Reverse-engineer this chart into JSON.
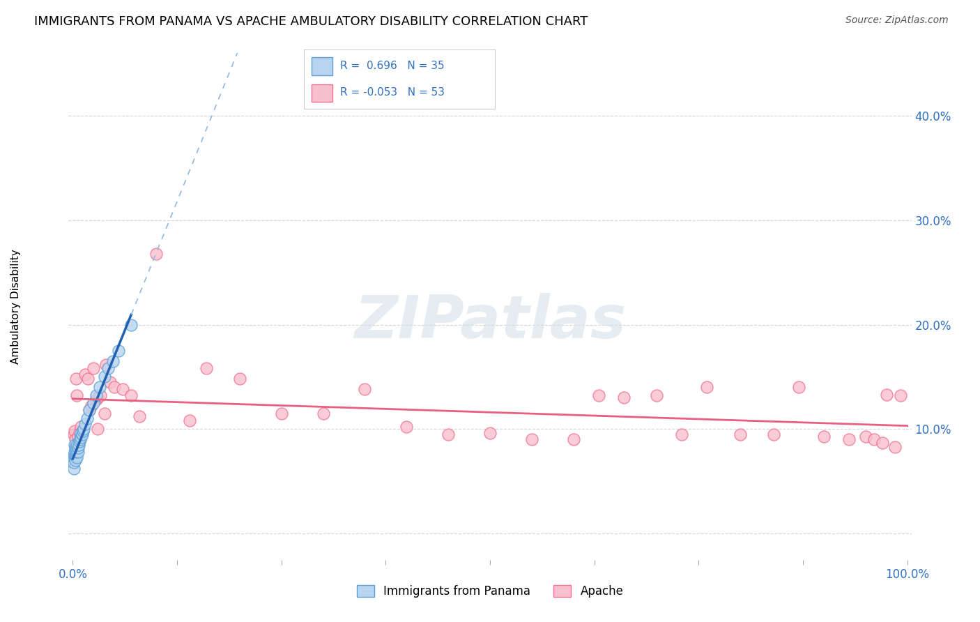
{
  "title": "IMMIGRANTS FROM PANAMA VS APACHE AMBULATORY DISABILITY CORRELATION CHART",
  "source": "Source: ZipAtlas.com",
  "ylabel": "Ambulatory Disability",
  "xlim": [
    -0.005,
    1.005
  ],
  "ylim": [
    -0.025,
    0.46
  ],
  "xticks": [
    0.0,
    0.125,
    0.25,
    0.375,
    0.5,
    0.625,
    0.75,
    0.875,
    1.0
  ],
  "xtick_labels": [
    "0.0%",
    "",
    "",
    "",
    "",
    "",
    "",
    "",
    "100.0%"
  ],
  "yticks": [
    0.0,
    0.1,
    0.2,
    0.3,
    0.4
  ],
  "ytick_labels": [
    "",
    "10.0%",
    "20.0%",
    "30.0%",
    "40.0%"
  ],
  "blue_R": "0.696",
  "blue_N": "35",
  "pink_R": "-0.053",
  "pink_N": "53",
  "blue_fill_color": "#B8D4F0",
  "pink_fill_color": "#F8C0CE",
  "blue_edge_color": "#5A9FD4",
  "pink_edge_color": "#F07090",
  "trend_blue_solid_color": "#2060B0",
  "trend_blue_dash_color": "#90B8E0",
  "trend_pink_color": "#E86080",
  "watermark_text": "ZIPatlas",
  "blue_x": [
    0.001,
    0.001,
    0.001,
    0.002,
    0.002,
    0.002,
    0.003,
    0.003,
    0.003,
    0.004,
    0.004,
    0.005,
    0.005,
    0.005,
    0.006,
    0.006,
    0.007,
    0.008,
    0.009,
    0.01,
    0.01,
    0.011,
    0.012,
    0.013,
    0.015,
    0.017,
    0.02,
    0.025,
    0.028,
    0.032,
    0.038,
    0.042,
    0.048,
    0.055,
    0.07
  ],
  "blue_y": [
    0.062,
    0.068,
    0.075,
    0.072,
    0.078,
    0.085,
    0.07,
    0.075,
    0.082,
    0.074,
    0.08,
    0.073,
    0.078,
    0.085,
    0.078,
    0.082,
    0.085,
    0.088,
    0.09,
    0.092,
    0.096,
    0.095,
    0.098,
    0.1,
    0.105,
    0.11,
    0.118,
    0.125,
    0.132,
    0.14,
    0.15,
    0.158,
    0.165,
    0.175,
    0.2
  ],
  "pink_x": [
    0.001,
    0.002,
    0.003,
    0.004,
    0.005,
    0.006,
    0.008,
    0.01,
    0.012,
    0.015,
    0.018,
    0.02,
    0.022,
    0.025,
    0.028,
    0.03,
    0.033,
    0.038,
    0.04,
    0.045,
    0.05,
    0.06,
    0.07,
    0.08,
    0.1,
    0.14,
    0.16,
    0.2,
    0.25,
    0.3,
    0.35,
    0.4,
    0.45,
    0.5,
    0.55,
    0.6,
    0.63,
    0.66,
    0.7,
    0.73,
    0.76,
    0.8,
    0.84,
    0.87,
    0.9,
    0.93,
    0.95,
    0.96,
    0.97,
    0.975,
    0.985,
    0.992,
    0.03
  ],
  "pink_y": [
    0.095,
    0.098,
    0.09,
    0.148,
    0.132,
    0.093,
    0.097,
    0.102,
    0.098,
    0.152,
    0.148,
    0.118,
    0.122,
    0.158,
    0.128,
    0.13,
    0.132,
    0.115,
    0.162,
    0.145,
    0.14,
    0.138,
    0.132,
    0.112,
    0.268,
    0.108,
    0.158,
    0.148,
    0.115,
    0.115,
    0.138,
    0.102,
    0.095,
    0.096,
    0.09,
    0.09,
    0.132,
    0.13,
    0.132,
    0.095,
    0.14,
    0.095,
    0.095,
    0.14,
    0.093,
    0.09,
    0.093,
    0.09,
    0.087,
    0.133,
    0.083,
    0.132,
    0.1
  ]
}
